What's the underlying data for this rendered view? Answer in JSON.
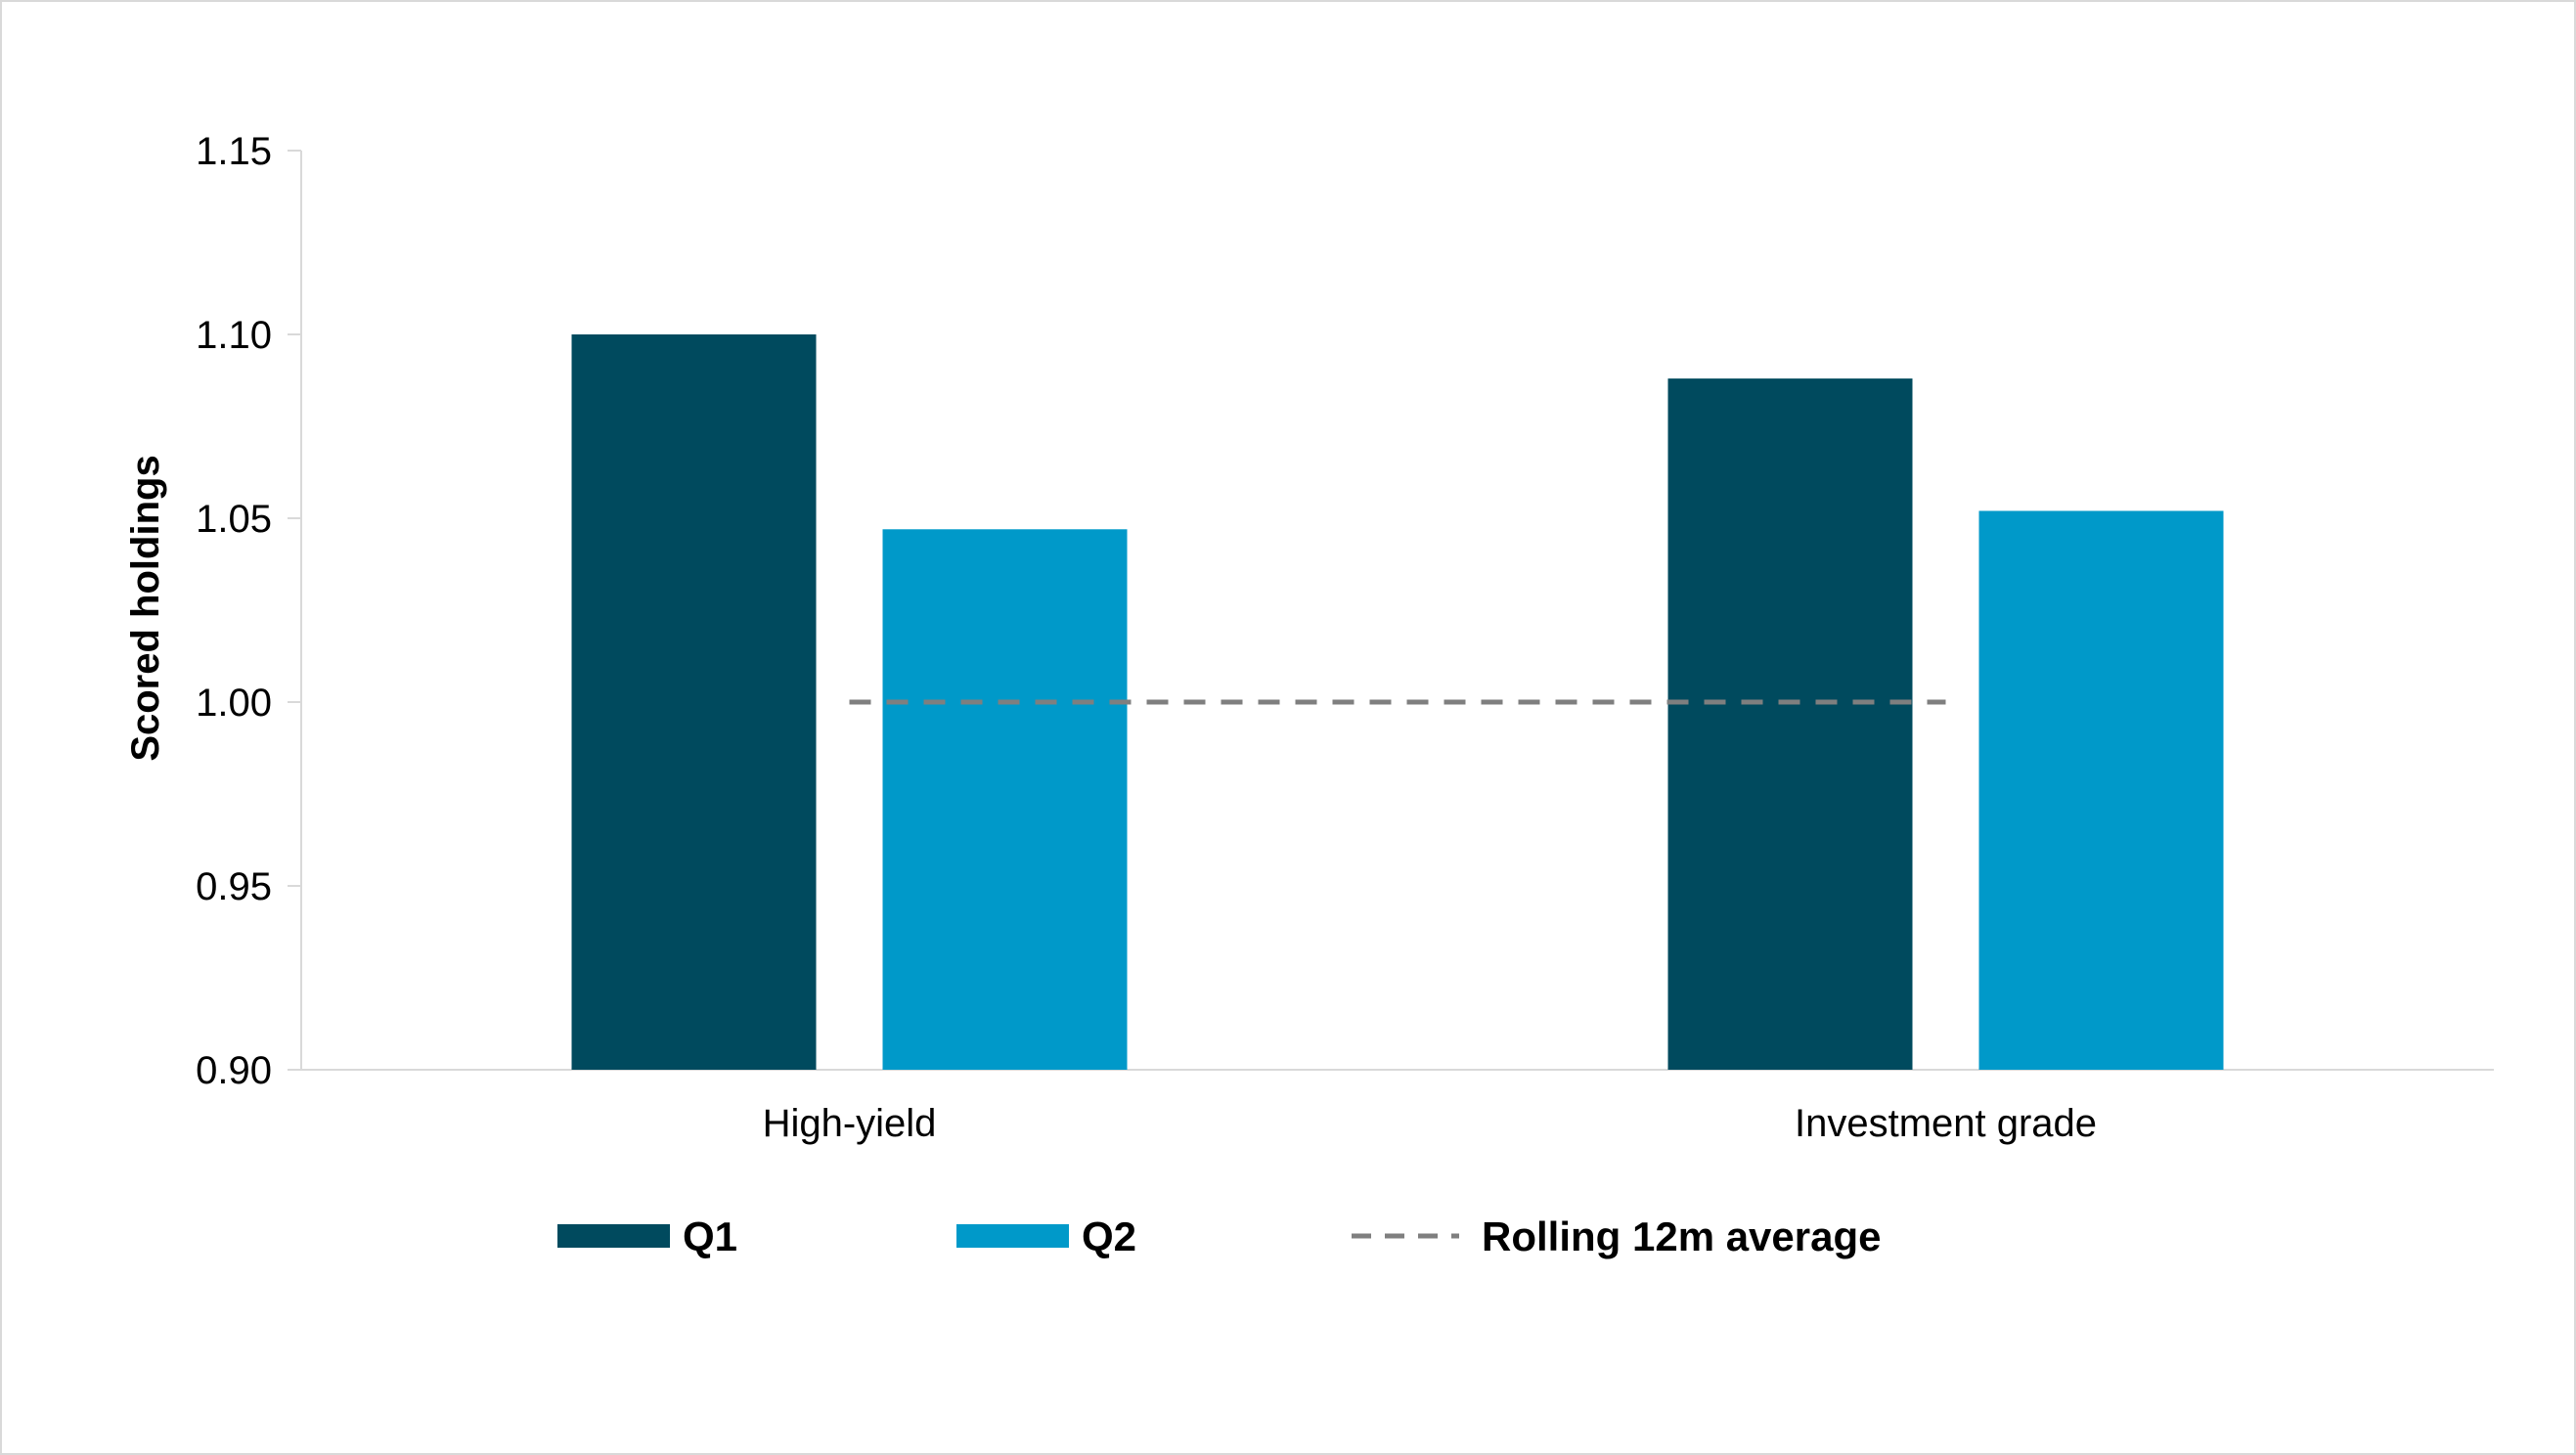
{
  "chart_data": {
    "type": "bar",
    "categories": [
      "High-yield",
      "Investment grade"
    ],
    "series": [
      {
        "name": "Q1",
        "values": [
          1.1,
          1.088
        ],
        "color": "#004A5E"
      },
      {
        "name": "Q2",
        "values": [
          1.047,
          1.052
        ],
        "color": "#0099C9"
      }
    ],
    "reference_line": {
      "name": "Rolling 12m average",
      "value": 1.0,
      "style": "dashed",
      "color": "#7F7F7F"
    },
    "ylabel": "Scored holdings",
    "ylim": [
      0.9,
      1.15
    ],
    "y_ticks": [
      "0.90",
      "0.95",
      "1.00",
      "1.05",
      "1.10",
      "1.15"
    ],
    "grid": false,
    "legend_position": "bottom"
  }
}
